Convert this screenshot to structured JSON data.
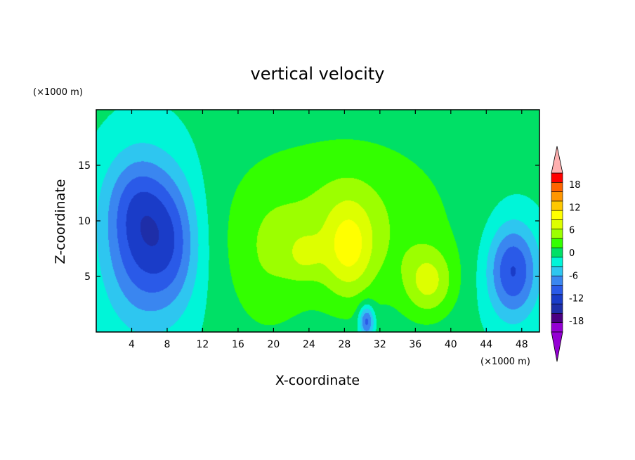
{
  "chart_data": {
    "type": "heatmap",
    "title": "vertical velocity",
    "xlabel": "X-coordinate",
    "ylabel": "Z-coordinate",
    "x_unit": "(×1000 m)",
    "y_unit": "(×1000 m)",
    "xlim": [
      0,
      50
    ],
    "ylim": [
      0,
      20
    ],
    "x_ticks": [
      4,
      8,
      12,
      16,
      20,
      24,
      28,
      32,
      36,
      40,
      44,
      48
    ],
    "y_ticks": [
      5,
      10,
      15
    ],
    "colorbar": {
      "tick_labels": [
        "18",
        "12",
        "6",
        "0",
        "-6",
        "-12",
        "-18"
      ],
      "tick_values": [
        18,
        12,
        6,
        0,
        -6,
        -12,
        -18
      ],
      "levels": [
        -21,
        -18,
        -15,
        -12,
        -9,
        -6,
        -3,
        0,
        3,
        6,
        9,
        12,
        15,
        18,
        21
      ],
      "colors": [
        "#9400d3",
        "#4b0082",
        "#1e2ea8",
        "#1a3cc8",
        "#2a5ae8",
        "#3a86f0",
        "#2ec6f0",
        "#00f5d8",
        "#00e066",
        "#33ff00",
        "#9cff00",
        "#ddff00",
        "#ffff00",
        "#ffc800",
        "#ff9600",
        "#ff6400",
        "#ff0000"
      ],
      "lower_extend_color": "#9400d3",
      "upper_extend_color": "#ffb0b0"
    },
    "features": [
      {
        "x": 5.5,
        "z": 8.0,
        "sx": 3.2,
        "sz": 5.0,
        "w": -13
      },
      {
        "x": 4.5,
        "z": 12.0,
        "sx": 2.5,
        "sz": 3.0,
        "w": -4
      },
      {
        "x": 9.0,
        "z": 8.0,
        "sx": 2.0,
        "sz": 4.0,
        "w": -5
      },
      {
        "x": 47.0,
        "z": 5.5,
        "sx": 2.0,
        "sz": 3.0,
        "w": -13
      },
      {
        "x": 30.5,
        "z": 1.0,
        "sx": 0.6,
        "sz": 1.0,
        "w": -12
      },
      {
        "x": 28.0,
        "z": 10.0,
        "sx": 8.5,
        "sz": 5.5,
        "w": 6
      },
      {
        "x": 28.5,
        "z": 7.5,
        "sx": 2.0,
        "sz": 3.0,
        "w": 8
      },
      {
        "x": 23.5,
        "z": 7.0,
        "sx": 1.5,
        "sz": 1.5,
        "w": 4
      },
      {
        "x": 37.5,
        "z": 4.5,
        "sx": 2.0,
        "sz": 2.2,
        "w": 8
      },
      {
        "x": 19.0,
        "z": 6.0,
        "sx": 3.0,
        "sz": 5.0,
        "w": 3
      }
    ],
    "background_w": 0.5
  }
}
